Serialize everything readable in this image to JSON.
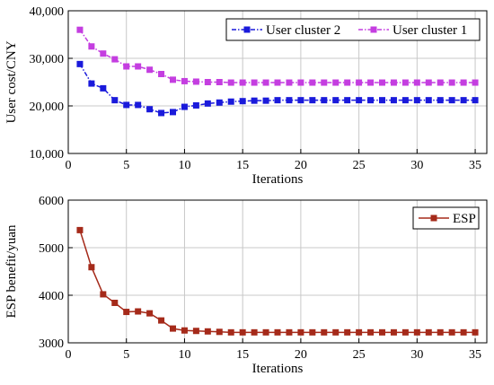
{
  "chart_data": [
    {
      "type": "line",
      "xlabel": "Iterations",
      "ylabel": "User cost/CNY",
      "xlim": [
        0,
        36
      ],
      "ylim": [
        10000,
        40000
      ],
      "xticks": [
        0,
        5,
        10,
        15,
        20,
        25,
        30,
        35
      ],
      "xtick_labels": [
        "0",
        "5",
        "10",
        "15",
        "20",
        "25",
        "30",
        "35"
      ],
      "yticks": [
        10000,
        20000,
        30000,
        40000
      ],
      "ytick_labels": [
        "10,000",
        "20,000",
        "30,000",
        "40,000"
      ],
      "grid": true,
      "legend_position": "top-right",
      "series": [
        {
          "name": "User cluster 2",
          "color": "#1a1adb",
          "marker": "square",
          "line_style": "dash-dot",
          "x": [
            1,
            2,
            3,
            4,
            5,
            6,
            7,
            8,
            9,
            10,
            11,
            12,
            13,
            14,
            15,
            16,
            17,
            18,
            19,
            20,
            21,
            22,
            23,
            24,
            25,
            26,
            27,
            28,
            29,
            30,
            31,
            32,
            33,
            34,
            35
          ],
          "y": [
            28800,
            24700,
            23700,
            21200,
            20200,
            20200,
            19300,
            18500,
            18700,
            19800,
            20100,
            20500,
            20700,
            20900,
            21000,
            21100,
            21100,
            21200,
            21200,
            21200,
            21200,
            21200,
            21200,
            21200,
            21200,
            21200,
            21200,
            21200,
            21200,
            21200,
            21200,
            21200,
            21200,
            21200,
            21200
          ]
        },
        {
          "name": "User cluster 1",
          "color": "#c43ee0",
          "marker": "square",
          "line_style": "dash-dot",
          "x": [
            1,
            2,
            3,
            4,
            5,
            6,
            7,
            8,
            9,
            10,
            11,
            12,
            13,
            14,
            15,
            16,
            17,
            18,
            19,
            20,
            21,
            22,
            23,
            24,
            25,
            26,
            27,
            28,
            29,
            30,
            31,
            32,
            33,
            34,
            35
          ],
          "y": [
            36000,
            32500,
            31000,
            29800,
            28300,
            28300,
            27600,
            26700,
            25500,
            25200,
            25100,
            25000,
            25000,
            24900,
            24900,
            24900,
            24900,
            24900,
            24900,
            24900,
            24900,
            24900,
            24900,
            24900,
            24900,
            24900,
            24900,
            24900,
            24900,
            24900,
            24900,
            24900,
            24900,
            24900,
            24900
          ]
        }
      ]
    },
    {
      "type": "line",
      "xlabel": "Iterations",
      "ylabel": "ESP benefit/yuan",
      "xlim": [
        0,
        36
      ],
      "ylim": [
        3000,
        6000
      ],
      "xticks": [
        0,
        5,
        10,
        15,
        20,
        25,
        30,
        35
      ],
      "xtick_labels": [
        "0",
        "5",
        "10",
        "15",
        "20",
        "25",
        "30",
        "35"
      ],
      "yticks": [
        3000,
        4000,
        5000,
        6000
      ],
      "ytick_labels": [
        "3000",
        "4000",
        "5000",
        "6000"
      ],
      "grid": true,
      "legend_position": "top-right",
      "series": [
        {
          "name": "ESP",
          "color": "#a52a1a",
          "marker": "square",
          "line_style": "solid",
          "x": [
            1,
            2,
            3,
            4,
            5,
            6,
            7,
            8,
            9,
            10,
            11,
            12,
            13,
            14,
            15,
            16,
            17,
            18,
            19,
            20,
            21,
            22,
            23,
            24,
            25,
            26,
            27,
            28,
            29,
            30,
            31,
            32,
            33,
            34,
            35
          ],
          "y": [
            5370,
            4590,
            4020,
            3840,
            3650,
            3660,
            3620,
            3470,
            3300,
            3260,
            3250,
            3240,
            3230,
            3220,
            3220,
            3220,
            3220,
            3220,
            3220,
            3220,
            3220,
            3220,
            3220,
            3220,
            3220,
            3220,
            3220,
            3220,
            3220,
            3220,
            3220,
            3220,
            3220,
            3220,
            3220
          ]
        }
      ]
    }
  ]
}
